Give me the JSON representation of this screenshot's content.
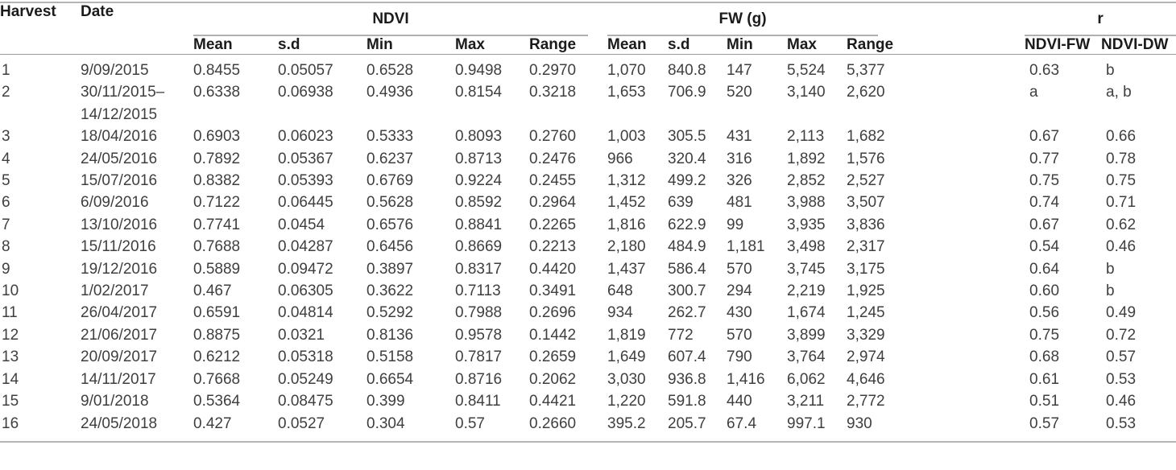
{
  "table": {
    "header": {
      "harvest_label": "Harvest",
      "date_label": "Date",
      "group_ndvi": "NDVI",
      "group_fw": "FW (g)",
      "group_r": "r",
      "sub_ndvi": [
        "Mean",
        "s.d",
        "Min",
        "Max",
        "Range"
      ],
      "sub_fw": [
        "Mean",
        "s.d",
        "Min",
        "Max",
        "Range"
      ],
      "sub_r": [
        "NDVI-FW",
        "NDVI-DW"
      ]
    },
    "rows": [
      [
        "1",
        "9/09/2015",
        "0.8455",
        "0.05057",
        "0.6528",
        "0.9498",
        "0.2970",
        "1,070",
        "840.8",
        "147",
        "5,524",
        "5,377",
        "0.63",
        "b"
      ],
      [
        "2",
        "30/11/2015–\n14/12/2015",
        "0.6338",
        "0.06938",
        "0.4936",
        "0.8154",
        "0.3218",
        "1,653",
        "706.9",
        "520",
        "3,140",
        "2,620",
        "a",
        "a, b"
      ],
      [
        "3",
        "18/04/2016",
        "0.6903",
        "0.06023",
        "0.5333",
        "0.8093",
        "0.2760",
        "1,003",
        "305.5",
        "431",
        "2,113",
        "1,682",
        "0.67",
        "0.66"
      ],
      [
        "4",
        "24/05/2016",
        "0.7892",
        "0.05367",
        "0.6237",
        "0.8713",
        "0.2476",
        "966",
        "320.4",
        "316",
        "1,892",
        "1,576",
        "0.77",
        "0.78"
      ],
      [
        "5",
        "15/07/2016",
        "0.8382",
        "0.05393",
        "0.6769",
        "0.9224",
        "0.2455",
        "1,312",
        "499.2",
        "326",
        "2,852",
        "2,527",
        "0.75",
        "0.75"
      ],
      [
        "6",
        "6/09/2016",
        "0.7122",
        "0.06445",
        "0.5628",
        "0.8592",
        "0.2964",
        "1,452",
        "639",
        "481",
        "3,988",
        "3,507",
        "0.74",
        "0.71"
      ],
      [
        "7",
        "13/10/2016",
        "0.7741",
        "0.0454",
        "0.6576",
        "0.8841",
        "0.2265",
        "1,816",
        "622.9",
        "99",
        "3,935",
        "3,836",
        "0.67",
        "0.62"
      ],
      [
        "8",
        "15/11/2016",
        "0.7688",
        "0.04287",
        "0.6456",
        "0.8669",
        "0.2213",
        "2,180",
        "484.9",
        "1,181",
        "3,498",
        "2,317",
        "0.54",
        "0.46"
      ],
      [
        "9",
        "19/12/2016",
        "0.5889",
        "0.09472",
        "0.3897",
        "0.8317",
        "0.4420",
        "1,437",
        "586.4",
        "570",
        "3,745",
        "3,175",
        "0.64",
        "b"
      ],
      [
        "10",
        "1/02/2017",
        "0.467",
        "0.06305",
        "0.3622",
        "0.7113",
        "0.3491",
        "648",
        "300.7",
        "294",
        "2,219",
        "1,925",
        "0.60",
        "b"
      ],
      [
        "11",
        "26/04/2017",
        "0.6591",
        "0.04814",
        "0.5292",
        "0.7988",
        "0.2696",
        "934",
        "262.7",
        "430",
        "1,674",
        "1,245",
        "0.56",
        "0.49"
      ],
      [
        "12",
        "21/06/2017",
        "0.8875",
        "0.0321",
        "0.8136",
        "0.9578",
        "0.1442",
        "1,819",
        "772",
        "570",
        "3,899",
        "3,329",
        "0.75",
        "0.72"
      ],
      [
        "13",
        "20/09/2017",
        "0.6212",
        "0.05318",
        "0.5158",
        "0.7817",
        "0.2659",
        "1,649",
        "607.4",
        "790",
        "3,764",
        "2,974",
        "0.68",
        "0.57"
      ],
      [
        "14",
        "14/11/2017",
        "0.7668",
        "0.05249",
        "0.6654",
        "0.8716",
        "0.2062",
        "3,030",
        "936.8",
        "1,416",
        "6,062",
        "4,646",
        "0.61",
        "0.53"
      ],
      [
        "15",
        "9/01/2018",
        "0.5364",
        "0.08475",
        "0.399",
        "0.8411",
        "0.4421",
        "1,220",
        "591.8",
        "440",
        "3,211",
        "2,772",
        "0.51",
        "0.46"
      ],
      [
        "16",
        "24/05/2018",
        "0.427",
        "0.0527",
        "0.304",
        "0.57",
        "0.2660",
        "395.2",
        "205.7",
        "67.4",
        "997.1",
        "930",
        "0.57",
        "0.53"
      ]
    ]
  },
  "colors": {
    "rule_heavy": "#b4b4b4",
    "rule_group": "#b0b0b0",
    "rule_light": "#9b9b9b",
    "header_text": "#1b1b1b",
    "data_text": "#3f3f3f"
  }
}
